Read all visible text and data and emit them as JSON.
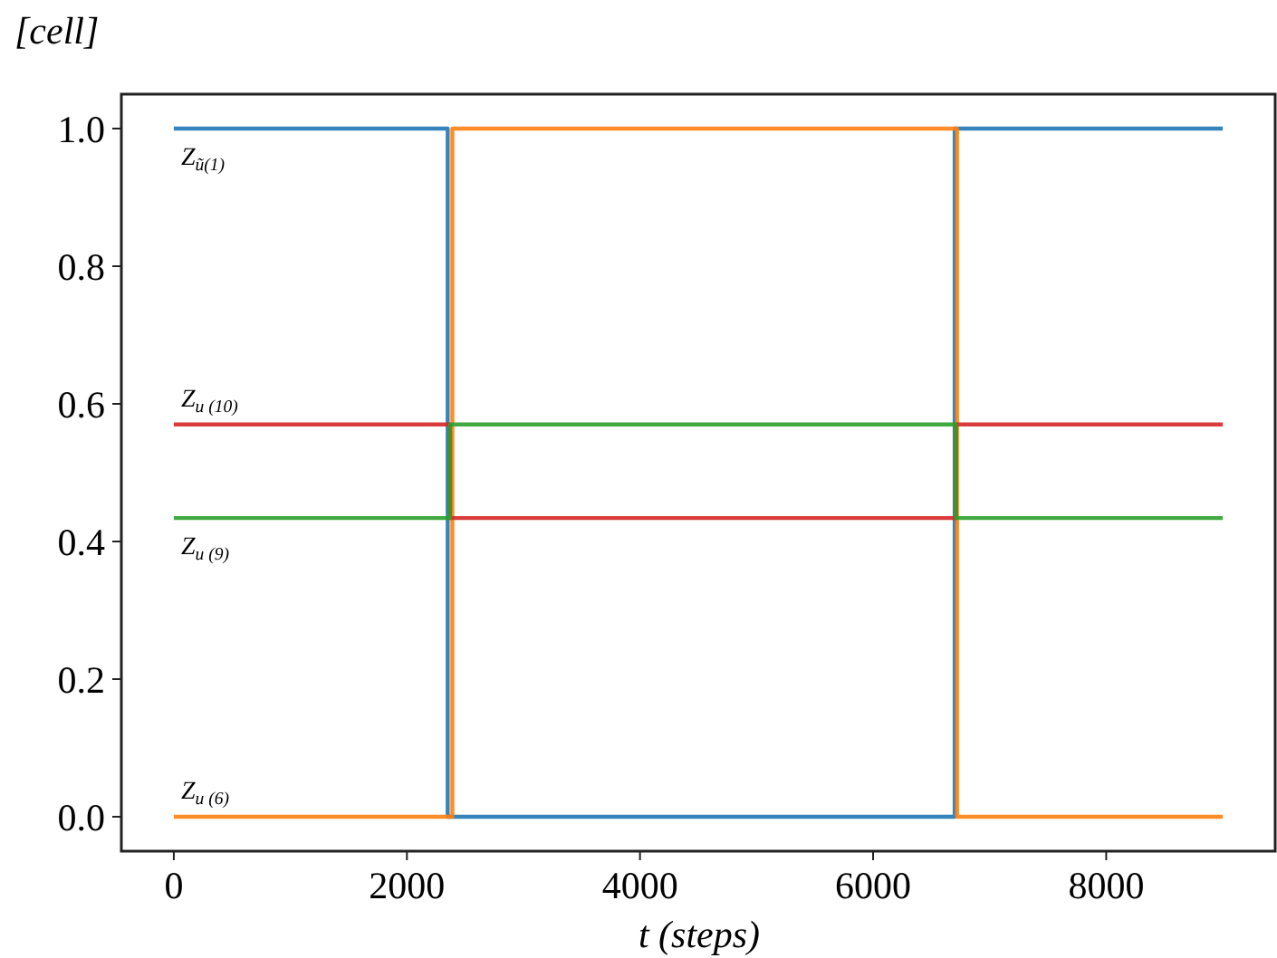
{
  "chart_data": {
    "type": "step",
    "xlabel": "t (steps)",
    "ylabel": "[cell]",
    "xlim": [
      -450,
      9450
    ],
    "ylim": [
      -0.05,
      1.05
    ],
    "xticks": [
      0,
      2000,
      4000,
      6000,
      8000
    ],
    "yticks": [
      {
        "value": 0,
        "label": "0.0"
      },
      {
        "value": 0.2,
        "label": "0.2"
      },
      {
        "value": 0.4,
        "label": "0.4"
      },
      {
        "value": 0.6,
        "label": "0.6"
      },
      {
        "value": 0.8,
        "label": "0.8"
      },
      {
        "value": 1,
        "label": "1.0"
      }
    ],
    "grid": false,
    "series": [
      {
        "name": "Z$_{ũ(1)}$",
        "color": "#1f77b4",
        "x": [
          0,
          2350,
          6700,
          9000
        ],
        "values": [
          1,
          0,
          1,
          1
        ]
      },
      {
        "name": "Z$_{u (6)}$",
        "color": "#ff7f0e",
        "x": [
          0,
          2390,
          6720,
          9000
        ],
        "values": [
          0,
          1,
          0,
          0
        ]
      },
      {
        "name": "Z$_{u (10)}$",
        "color": "#d62728",
        "x": [
          0,
          2370,
          6710,
          9000
        ],
        "values": [
          0.57,
          0.434,
          0.57,
          0.57
        ]
      },
      {
        "name": "Z$_{u (9)}$",
        "color": "#2ca02c",
        "x": [
          0,
          2370,
          6710,
          9000
        ],
        "values": [
          0.434,
          0.57,
          0.434,
          0.434
        ]
      }
    ]
  }
}
